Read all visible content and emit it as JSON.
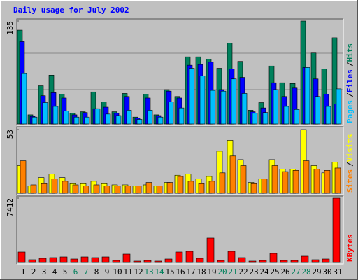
{
  "chart_data": [
    {
      "type": "bar",
      "title": "Daily usage for July 2002",
      "ylim": [
        0,
        135
      ],
      "yticks": [
        135
      ],
      "legend_separator": "/",
      "series": [
        {
          "name": "Hits",
          "color": "#00805c",
          "values": [
            123,
            12,
            50,
            64,
            39,
            14,
            16,
            42,
            29,
            16,
            40,
            9,
            39,
            12,
            45,
            36,
            88,
            88,
            85,
            73,
            106,
            82,
            18,
            28,
            76,
            54,
            53,
            135,
            93,
            72,
            113
          ]
        },
        {
          "name": "Files",
          "color": "#0000ff",
          "values": [
            108,
            10,
            37,
            41,
            34,
            12,
            15,
            20,
            22,
            14,
            36,
            8,
            34,
            11,
            43,
            34,
            77,
            78,
            81,
            45,
            72,
            61,
            16,
            21,
            54,
            36,
            47,
            74,
            59,
            39,
            26
          ]
        },
        {
          "name": "Pages",
          "color": "#00c0ff",
          "values": [
            66,
            9,
            28,
            23,
            17,
            9,
            9,
            20,
            13,
            11,
            18,
            6,
            18,
            9,
            29,
            21,
            73,
            63,
            44,
            43,
            59,
            40,
            14,
            15,
            45,
            23,
            19,
            74,
            36,
            23,
            46
          ]
        }
      ]
    },
    {
      "type": "bar",
      "ylim": [
        0,
        53
      ],
      "yticks": [
        53
      ],
      "legend_separator": "/",
      "series": [
        {
          "name": "Visits",
          "color": "#ffff00",
          "values": [
            23,
            6,
            13,
            16,
            13,
            8,
            8,
            10,
            8,
            7,
            7,
            6,
            7,
            6,
            9,
            15,
            16,
            12,
            14,
            35,
            44,
            28,
            9,
            12,
            28,
            20,
            20,
            53,
            23,
            17,
            26
          ]
        },
        {
          "name": "Sites",
          "color": "#ff8000",
          "values": [
            27,
            7,
            8,
            12,
            10,
            7,
            6,
            7,
            6,
            6,
            6,
            6,
            9,
            6,
            9,
            14,
            10,
            8,
            10,
            17,
            31,
            23,
            8,
            12,
            23,
            18,
            19,
            27,
            20,
            19,
            21
          ]
        }
      ]
    },
    {
      "type": "bar",
      "ylim": [
        0,
        7412
      ],
      "yticks": [
        7412
      ],
      "categories": [
        "1",
        "2",
        "3",
        "4",
        "5",
        "6",
        "7",
        "8",
        "9",
        "10",
        "11",
        "12",
        "13",
        "14",
        "15",
        "16",
        "17",
        "18",
        "19",
        "20",
        "21",
        "22",
        "23",
        "24",
        "25",
        "26",
        "27",
        "28",
        "29",
        "30",
        "31"
      ],
      "category_label_colors": [
        "#000",
        "#000",
        "#000",
        "#000",
        "#000",
        "#00805c",
        "#00805c",
        "#000",
        "#000",
        "#000",
        "#000",
        "#000",
        "#00805c",
        "#00805c",
        "#000",
        "#000",
        "#000",
        "#000",
        "#000",
        "#00805c",
        "#00805c",
        "#000",
        "#000",
        "#000",
        "#000",
        "#000",
        "#00805c",
        "#00805c",
        "#000",
        "#000",
        "#000"
      ],
      "series": [
        {
          "name": "KBytes",
          "color": "#ff0000",
          "values": [
            1209,
            322,
            484,
            564,
            645,
            403,
            645,
            564,
            645,
            242,
            967,
            161,
            242,
            161,
            403,
            1209,
            1290,
            484,
            2821,
            242,
            1290,
            564,
            161,
            242,
            1048,
            242,
            242,
            725,
            322,
            403,
            7412
          ]
        }
      ]
    }
  ]
}
